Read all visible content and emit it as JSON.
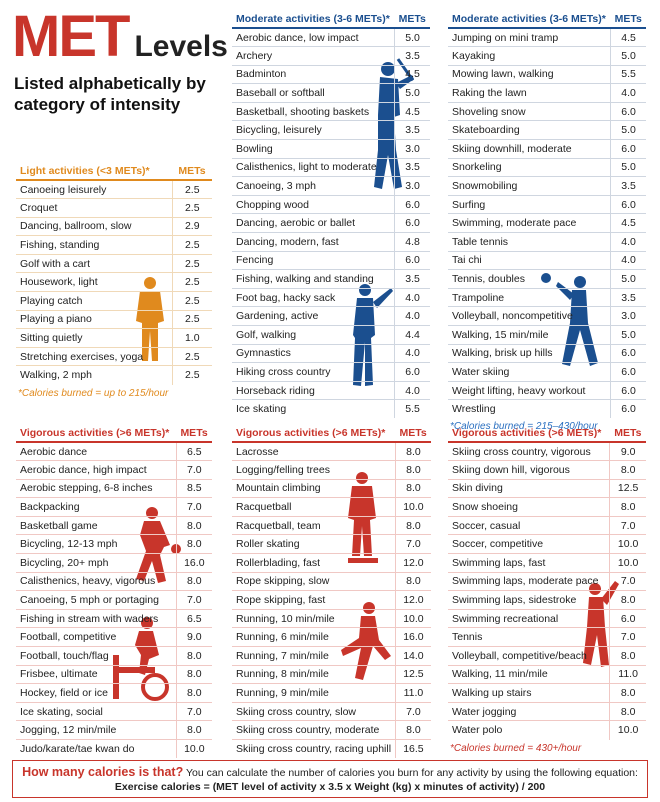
{
  "header": {
    "title_met": "MET",
    "title_levels": "Levels",
    "subtitle": "Listed alphabetically by category of intensity"
  },
  "colors": {
    "light": "#e08a1e",
    "moderate": "#1b4f8f",
    "vigorous": "#c8352b"
  },
  "light": {
    "heading": "Light activities (<3 METs)*",
    "mets_label": "METs",
    "rows": [
      [
        "Canoeing leisurely",
        "2.5"
      ],
      [
        "Croquet",
        "2.5"
      ],
      [
        "Dancing, ballroom, slow",
        "2.9"
      ],
      [
        "Fishing, standing",
        "2.5"
      ],
      [
        "Golf with a cart",
        "2.5"
      ],
      [
        "Housework, light",
        "2.5"
      ],
      [
        "Playing catch",
        "2.5"
      ],
      [
        "Playing a piano",
        "2.5"
      ],
      [
        "Sitting quietly",
        "1.0"
      ],
      [
        "Stretching exercises, yoga",
        "2.5"
      ],
      [
        "Walking, 2 mph",
        "2.5"
      ]
    ],
    "note": "*Calories burned = up to 215/hour"
  },
  "moderate1": {
    "heading": "Moderate activities (3-6 METs)*",
    "mets_label": "METs",
    "rows": [
      [
        "Aerobic dance, low impact",
        "5.0"
      ],
      [
        "Archery",
        "3.5"
      ],
      [
        "Badminton",
        "4.5"
      ],
      [
        "Baseball or softball",
        "5.0"
      ],
      [
        "Basketball, shooting baskets",
        "4.5"
      ],
      [
        "Bicycling, leisurely",
        "3.5"
      ],
      [
        "Bowling",
        "3.0"
      ],
      [
        "Calisthenics, light to moderate",
        "3.5"
      ],
      [
        "Canoeing, 3 mph",
        "3.0"
      ],
      [
        "Chopping wood",
        "6.0"
      ],
      [
        "Dancing, aerobic or ballet",
        "6.0"
      ],
      [
        "Dancing, modern, fast",
        "4.8"
      ],
      [
        "Fencing",
        "6.0"
      ],
      [
        "Fishing, walking and standing",
        "3.5"
      ],
      [
        "Foot bag, hacky sack",
        "4.0"
      ],
      [
        "Gardening, active",
        "4.0"
      ],
      [
        "Golf, walking",
        "4.4"
      ],
      [
        "Gymnastics",
        "4.0"
      ],
      [
        "Hiking cross country",
        "6.0"
      ],
      [
        "Horseback riding",
        "4.0"
      ],
      [
        "Ice skating",
        "5.5"
      ]
    ]
  },
  "moderate2": {
    "heading": "Moderate activities (3-6 METs)*",
    "mets_label": "METs",
    "rows": [
      [
        "Jumping on mini tramp",
        "4.5"
      ],
      [
        "Kayaking",
        "5.0"
      ],
      [
        "Mowing lawn, walking",
        "5.5"
      ],
      [
        "Raking the lawn",
        "4.0"
      ],
      [
        "Shoveling snow",
        "6.0"
      ],
      [
        "Skateboarding",
        "5.0"
      ],
      [
        "Skiing downhill, moderate",
        "6.0"
      ],
      [
        "Snorkeling",
        "5.0"
      ],
      [
        "Snowmobiling",
        "3.5"
      ],
      [
        "Surfing",
        "6.0"
      ],
      [
        "Swimming, moderate pace",
        "4.5"
      ],
      [
        "Table tennis",
        "4.0"
      ],
      [
        "Tai chi",
        "4.0"
      ],
      [
        "Tennis, doubles",
        "5.0"
      ],
      [
        "Trampoline",
        "3.5"
      ],
      [
        "Volleyball, noncompetitive",
        "3.0"
      ],
      [
        "Walking, 15 min/mile",
        "5.0"
      ],
      [
        "Walking, brisk up hills",
        "6.0"
      ],
      [
        "Water skiing",
        "6.0"
      ],
      [
        "Weight lifting, heavy workout",
        "6.0"
      ],
      [
        "Wrestling",
        "6.0"
      ]
    ],
    "note": "*Calories burned = 215–430/hour"
  },
  "vigorous1": {
    "heading": "Vigorous activities (>6 METs)*",
    "mets_label": "METs",
    "rows": [
      [
        "Aerobic dance",
        "6.5"
      ],
      [
        "Aerobic dance, high impact",
        "7.0"
      ],
      [
        "Aerobic stepping, 6-8 inches",
        "8.5"
      ],
      [
        "Backpacking",
        "7.0"
      ],
      [
        "Basketball game",
        "8.0"
      ],
      [
        "Bicycling, 12-13 mph",
        "8.0"
      ],
      [
        "Bicycling, 20+ mph",
        "16.0"
      ],
      [
        "Calisthenics, heavy, vigorous",
        "8.0"
      ],
      [
        "Canoeing, 5 mph or portaging",
        "7.0"
      ],
      [
        "Fishing in stream with waders",
        "6.5"
      ],
      [
        "Football, competitive",
        "9.0"
      ],
      [
        "Football, touch/flag",
        "8.0"
      ],
      [
        "Frisbee, ultimate",
        "8.0"
      ],
      [
        "Hockey, field or ice",
        "8.0"
      ],
      [
        "Ice skating, social",
        "7.0"
      ],
      [
        "Jogging, 12 min/mile",
        "8.0"
      ],
      [
        "Judo/karate/tae kwan do",
        "10.0"
      ]
    ]
  },
  "vigorous2": {
    "heading": "Vigorous activities (>6 METs)*",
    "mets_label": "METs",
    "rows": [
      [
        "Lacrosse",
        "8.0"
      ],
      [
        "Logging/felling trees",
        "8.0"
      ],
      [
        "Mountain climbing",
        "8.0"
      ],
      [
        "Racquetball",
        "10.0"
      ],
      [
        "Racquetball, team",
        "8.0"
      ],
      [
        "Roller skating",
        "7.0"
      ],
      [
        "Rollerblading, fast",
        "12.0"
      ],
      [
        "Rope skipping, slow",
        "8.0"
      ],
      [
        "Rope skipping, fast",
        "12.0"
      ],
      [
        "Running, 10 min/mile",
        "10.0"
      ],
      [
        "Running, 6 min/mile",
        "16.0"
      ],
      [
        "Running, 7 min/mile",
        "14.0"
      ],
      [
        "Running, 8 min/mile",
        "12.5"
      ],
      [
        "Running, 9 min/mile",
        "11.0"
      ],
      [
        "Skiing cross country, slow",
        "7.0"
      ],
      [
        "Skiing cross country, moderate",
        "8.0"
      ],
      [
        "Skiing cross country, racing uphill",
        "16.5"
      ]
    ]
  },
  "vigorous3": {
    "heading": "Vigorous activities (>6 METs)*",
    "mets_label": "METs",
    "rows": [
      [
        "Skiing cross country, vigorous",
        "9.0"
      ],
      [
        "Skiing down hill, vigorous",
        "8.0"
      ],
      [
        "Skin diving",
        "12.5"
      ],
      [
        "Snow shoeing",
        "8.0"
      ],
      [
        "Soccer, casual",
        "7.0"
      ],
      [
        "Soccer, competitive",
        "10.0"
      ],
      [
        "Swimming laps, fast",
        "10.0"
      ],
      [
        "Swimming laps, moderate pace",
        "7.0"
      ],
      [
        "Swimming laps, sidestroke",
        "8.0"
      ],
      [
        "Swimming recreational",
        "6.0"
      ],
      [
        "Tennis",
        "7.0"
      ],
      [
        "Volleyball, competitive/beach",
        "8.0"
      ],
      [
        "Walking, 11 min/mile",
        "11.0"
      ],
      [
        "Walking up stairs",
        "8.0"
      ],
      [
        "Water jogging",
        "8.0"
      ],
      [
        "Water polo",
        "10.0"
      ]
    ],
    "note": "*Calories burned = 430+/hour"
  },
  "footer": {
    "question": "How many calories is that?",
    "explanation": "You can calculate the number of calories you burn for any activity by using the following equation:",
    "equation": "Exercise calories = (MET level of activity x 3.5 x Weight (kg) x minutes of activity) / 200"
  }
}
